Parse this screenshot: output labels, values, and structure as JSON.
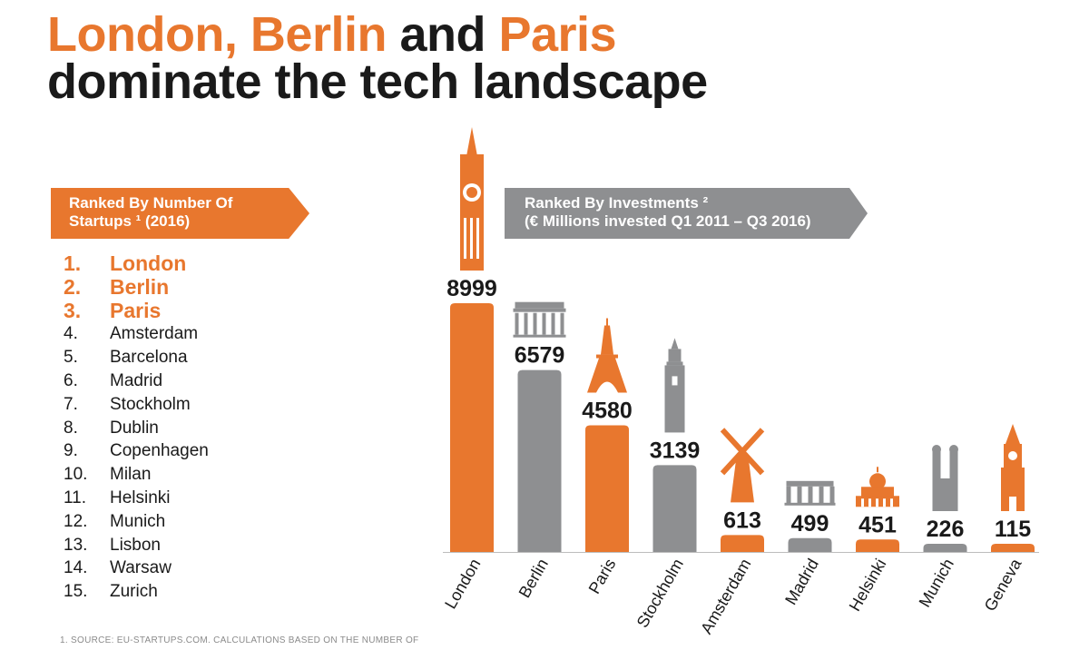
{
  "title": {
    "line1_part1": "London, Berlin",
    "line1_part2": " and ",
    "line1_part3": "Paris",
    "line2": "dominate the tech landscape"
  },
  "startups_banner": {
    "line1": "Ranked By Number Of",
    "line2": "Startups ¹ (2016)"
  },
  "investments_banner": {
    "line1": "Ranked By Investments ²",
    "line2": "(€ Millions invested Q1 2011 – Q3 2016)"
  },
  "startup_ranking": [
    {
      "rank": "1.",
      "city": "London"
    },
    {
      "rank": "2.",
      "city": "Berlin"
    },
    {
      "rank": "3.",
      "city": "Paris"
    },
    {
      "rank": "4.",
      "city": "Amsterdam"
    },
    {
      "rank": "5.",
      "city": "Barcelona"
    },
    {
      "rank": "6.",
      "city": "Madrid"
    },
    {
      "rank": "7.",
      "city": "Stockholm"
    },
    {
      "rank": "8.",
      "city": "Dublin"
    },
    {
      "rank": "9.",
      "city": "Copenhagen"
    },
    {
      "rank": "10.",
      "city": "Milan"
    },
    {
      "rank": "11.",
      "city": "Helsinki"
    },
    {
      "rank": "12.",
      "city": "Munich"
    },
    {
      "rank": "13.",
      "city": "Lisbon"
    },
    {
      "rank": "14.",
      "city": "Warsaw"
    },
    {
      "rank": "15.",
      "city": "Zurich"
    }
  ],
  "footnote": "1. SOURCE: EU-STARTUPS.COM. CALCULATIONS BASED ON THE NUMBER OF",
  "colors": {
    "orange": "#E8772E",
    "gray": "#8E8F91",
    "text": "#1a1a1a"
  },
  "chart_data": {
    "type": "bar",
    "title": "",
    "xlabel": "",
    "ylabel": "",
    "ylim": [
      0,
      8999
    ],
    "grid": false,
    "categories": [
      "London",
      "Berlin",
      "Paris",
      "Stockholm",
      "Amsterdam",
      "Madrid",
      "Helsinki",
      "Munich",
      "Geneva"
    ],
    "values": [
      8999,
      6579,
      4580,
      3139,
      613,
      499,
      451,
      226,
      115
    ],
    "labels": [
      "8999",
      "6579",
      "4580",
      "3139",
      "613",
      "499",
      "451",
      "226",
      "115"
    ],
    "bar_colors": [
      "#E8772E",
      "#8E8F91",
      "#E8772E",
      "#8E8F91",
      "#E8772E",
      "#8E8F91",
      "#E8772E",
      "#8E8F91",
      "#E8772E"
    ],
    "icons": [
      "big-ben-icon",
      "brandenburg-gate-icon",
      "eiffel-tower-icon",
      "stockholm-tower-icon",
      "windmill-icon",
      "alcala-gate-icon",
      "helsinki-cathedral-icon",
      "frauenkirche-icon",
      "geneva-tower-icon"
    ]
  }
}
